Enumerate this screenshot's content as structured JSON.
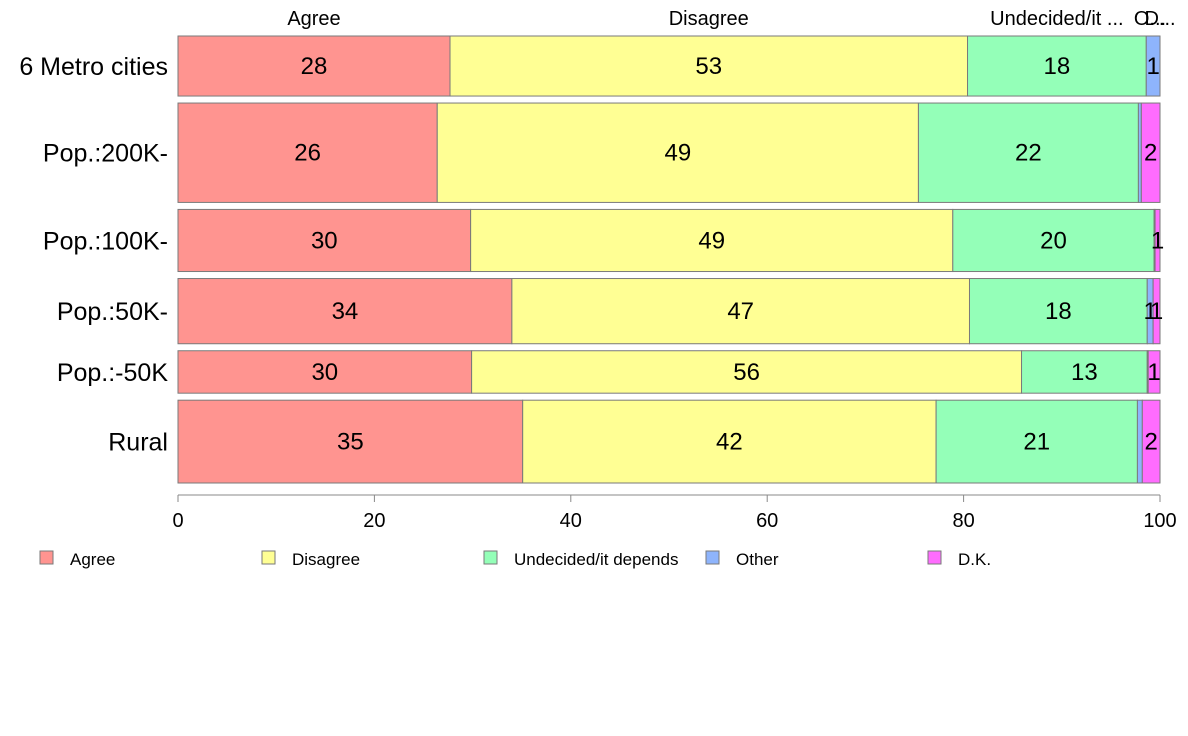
{
  "chart_data": {
    "type": "bar",
    "orientation": "horizontal",
    "stacked": true,
    "categories": [
      "6 Metro cities",
      "Pop.:200K-",
      "Pop.:100K-",
      "Pop.:50K-",
      "Pop.:-50K",
      "Rural"
    ],
    "series": [
      {
        "name": "Agree",
        "color": "#ff9490",
        "values": [
          27.7,
          26.4,
          29.8,
          34.0,
          29.9,
          35.1
        ]
      },
      {
        "name": "Disagree",
        "color": "#ffff94",
        "values": [
          52.7,
          49.0,
          49.1,
          46.6,
          56.0,
          42.1
        ]
      },
      {
        "name": "Undecided/it depends",
        "color": "#94ffb8",
        "values": [
          18.2,
          22.4,
          20.5,
          18.1,
          12.8,
          20.5
        ]
      },
      {
        "name": "Other",
        "color": "#8eb4fc",
        "values": [
          1.4,
          0.3,
          0.1,
          0.6,
          0.1,
          0.5
        ]
      },
      {
        "name": "D.K.",
        "color": "#ff6cfe",
        "values": [
          0.0,
          1.9,
          0.5,
          0.7,
          1.2,
          1.8
        ]
      }
    ],
    "data_labels": [
      [
        "28",
        "53",
        "18",
        "1",
        ""
      ],
      [
        "26",
        "49",
        "22",
        "",
        "2"
      ],
      [
        "30",
        "49",
        "20",
        "",
        "1"
      ],
      [
        "34",
        "47",
        "18",
        "1",
        "1"
      ],
      [
        "30",
        "56",
        "13",
        "",
        "1"
      ],
      [
        "35",
        "42",
        "21",
        "",
        "2"
      ]
    ],
    "top_labels": [
      "Agree",
      "Disagree",
      "Undecided/it ...",
      "O...",
      "D..."
    ],
    "bar_widths_relative": [
      0.58,
      0.96,
      0.6,
      0.63,
      0.41,
      0.8
    ],
    "xlim": [
      0,
      100
    ],
    "xticks": [
      "0",
      "20",
      "40",
      "60",
      "80",
      "100"
    ],
    "grid": false,
    "legend_position": "bottom"
  }
}
